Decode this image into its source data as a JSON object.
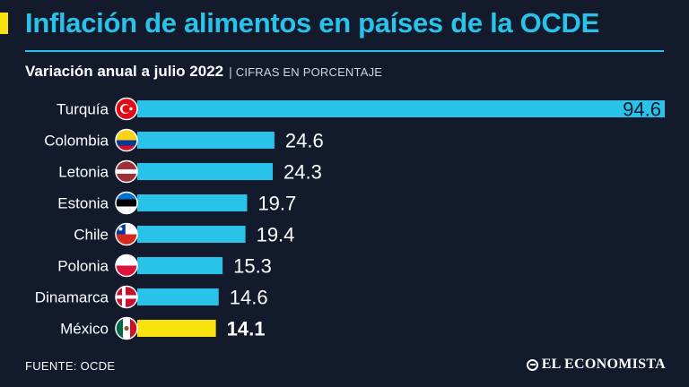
{
  "header": {
    "title": "Inflación de alimentos en países de la OCDE",
    "subtitle": "Variación anual a julio 2022",
    "separator": "|",
    "units": "CIFRAS EN PORCENTAJE"
  },
  "footer": {
    "source": "FUENTE: OCDE",
    "brand": "EL ECONOMISTA"
  },
  "colors": {
    "background": "#121a2b",
    "bar": "#29c3ea",
    "highlight_bar": "#f7e20f",
    "title": "#29c3ea"
  },
  "chart_data": {
    "type": "bar",
    "orientation": "horizontal",
    "title": "Inflación de alimentos en países de la OCDE",
    "subtitle": "Variación anual a julio 2022",
    "xlabel": "",
    "ylabel": "",
    "units": "CIFRAS EN PORCENTAJE",
    "xlim": [
      0,
      94.6
    ],
    "grid": false,
    "categories": [
      "Turquía",
      "Colombia",
      "Letonia",
      "Estonia",
      "Chile",
      "Polonia",
      "Dinamarca",
      "México"
    ],
    "values": [
      94.6,
      24.6,
      24.3,
      19.7,
      19.4,
      15.3,
      14.6,
      14.1
    ],
    "value_labels": [
      "94.6",
      "24.6",
      "24.3",
      "19.7",
      "19.4",
      "15.3",
      "14.6",
      "14.1"
    ],
    "highlight": "México",
    "flags": [
      "turkey-flag-icon",
      "colombia-flag-icon",
      "latvia-flag-icon",
      "estonia-flag-icon",
      "chile-flag-icon",
      "poland-flag-icon",
      "denmark-flag-icon",
      "mexico-flag-icon"
    ]
  }
}
